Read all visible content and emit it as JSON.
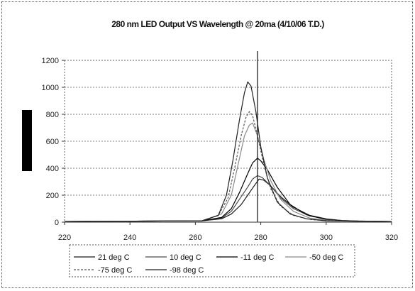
{
  "chart_data": {
    "type": "line",
    "title": "280 nm LED Output VS Wavelength @ 20ma (4/10/06 T.D.)",
    "xlabel": "",
    "ylabel": "",
    "xlim": [
      220,
      320
    ],
    "ylim": [
      0,
      1200
    ],
    "x_ticks": [
      "220",
      "240",
      "260",
      "280",
      "300",
      "320"
    ],
    "y_ticks": [
      "0",
      "200",
      "400",
      "600",
      "800",
      "1000",
      "1200"
    ],
    "grid": "horizontal dotted",
    "legend_position": "bottom",
    "vertical_marker_x": 279,
    "series": [
      {
        "name": "21 deg C",
        "color": "#1a1a1a",
        "dash": "solid",
        "points": [
          [
            220,
            5
          ],
          [
            262,
            10
          ],
          [
            268,
            25
          ],
          [
            271,
            60
          ],
          [
            274,
            130
          ],
          [
            276,
            200
          ],
          [
            278,
            270
          ],
          [
            279.5,
            320
          ],
          [
            281,
            310
          ],
          [
            283,
            270
          ],
          [
            286,
            190
          ],
          [
            290,
            110
          ],
          [
            295,
            50
          ],
          [
            300,
            25
          ],
          [
            305,
            12
          ],
          [
            310,
            8
          ],
          [
            320,
            5
          ]
        ]
      },
      {
        "name": "10 deg C",
        "color": "#4a4a4a",
        "dash": "solid",
        "points": [
          [
            220,
            5
          ],
          [
            262,
            10
          ],
          [
            268,
            30
          ],
          [
            271,
            80
          ],
          [
            273.5,
            170
          ],
          [
            276,
            260
          ],
          [
            277.5,
            320
          ],
          [
            279,
            345
          ],
          [
            280.5,
            330
          ],
          [
            283,
            270
          ],
          [
            286,
            180
          ],
          [
            290,
            100
          ],
          [
            295,
            45
          ],
          [
            300,
            22
          ],
          [
            305,
            12
          ],
          [
            310,
            8
          ],
          [
            320,
            5
          ]
        ]
      },
      {
        "name": "-11 deg C",
        "color": "#000000",
        "dash": "solid",
        "points": [
          [
            220,
            5
          ],
          [
            262,
            10
          ],
          [
            268,
            35
          ],
          [
            271,
            100
          ],
          [
            273.5,
            220
          ],
          [
            276,
            360
          ],
          [
            277.5,
            440
          ],
          [
            279,
            475
          ],
          [
            280,
            455
          ],
          [
            282,
            390
          ],
          [
            285,
            260
          ],
          [
            289,
            130
          ],
          [
            294,
            55
          ],
          [
            300,
            20
          ],
          [
            305,
            10
          ],
          [
            310,
            6
          ],
          [
            320,
            5
          ]
        ]
      },
      {
        "name": "-50 deg C",
        "color": "#8a8a8a",
        "dash": "solid",
        "points": [
          [
            220,
            5
          ],
          [
            262,
            10
          ],
          [
            268,
            60
          ],
          [
            271,
            200
          ],
          [
            273,
            420
          ],
          [
            275,
            640
          ],
          [
            276.5,
            720
          ],
          [
            277.5,
            735
          ],
          [
            279,
            640
          ],
          [
            281,
            460
          ],
          [
            283,
            310
          ],
          [
            286,
            170
          ],
          [
            290,
            80
          ],
          [
            295,
            30
          ],
          [
            300,
            15
          ],
          [
            305,
            8
          ],
          [
            320,
            5
          ]
        ]
      },
      {
        "name": "-75 deg C",
        "color": "#555555",
        "dash": "3,2",
        "points": [
          [
            220,
            5
          ],
          [
            262,
            10
          ],
          [
            267,
            50
          ],
          [
            270,
            180
          ],
          [
            272,
            400
          ],
          [
            274,
            640
          ],
          [
            275.5,
            780
          ],
          [
            276.5,
            820
          ],
          [
            277.5,
            790
          ],
          [
            279,
            640
          ],
          [
            281,
            420
          ],
          [
            283,
            250
          ],
          [
            286,
            120
          ],
          [
            290,
            50
          ],
          [
            295,
            20
          ],
          [
            300,
            10
          ],
          [
            320,
            5
          ]
        ]
      },
      {
        "name": "-98 deg C",
        "color": "#222222",
        "dash": "solid",
        "points": [
          [
            220,
            5
          ],
          [
            262,
            10
          ],
          [
            267,
            50
          ],
          [
            269.5,
            200
          ],
          [
            271.5,
            460
          ],
          [
            273.5,
            760
          ],
          [
            275,
            960
          ],
          [
            276,
            1040
          ],
          [
            277,
            1010
          ],
          [
            278.5,
            820
          ],
          [
            280,
            560
          ],
          [
            282,
            330
          ],
          [
            285,
            150
          ],
          [
            289,
            60
          ],
          [
            294,
            25
          ],
          [
            300,
            10
          ],
          [
            320,
            5
          ]
        ]
      }
    ]
  }
}
